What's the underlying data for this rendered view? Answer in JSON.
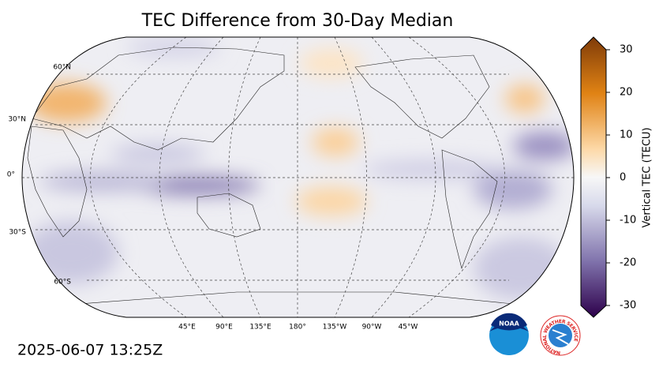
{
  "title": "TEC Difference from 30-Day Median",
  "map": {
    "lat_labels": [
      "60°N",
      "30°N",
      "0°",
      "30°S",
      "60°S"
    ],
    "lon_labels": [
      "45°E",
      "90°E",
      "135°E",
      "180°",
      "135°W",
      "90°W",
      "45°W"
    ]
  },
  "colorbar": {
    "label": "Vertical TEC (TECU)",
    "range": [
      -30,
      30
    ],
    "ticks": [
      30,
      20,
      10,
      0,
      -10,
      -20,
      -30
    ]
  },
  "timestamp": "2025-06-07 13:25Z",
  "logos": {
    "noaa": "NOAA",
    "nws": "NATIONAL WEATHER SERVICE"
  }
}
